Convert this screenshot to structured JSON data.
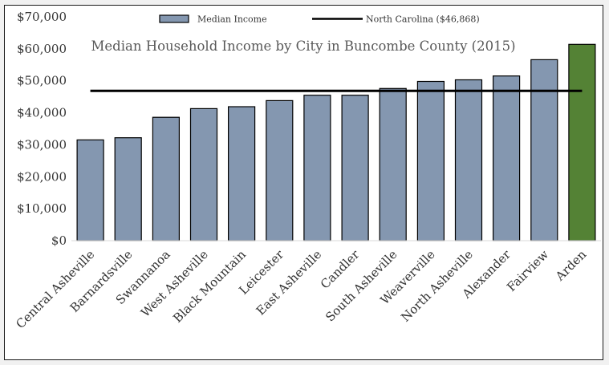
{
  "chart_data": {
    "type": "bar",
    "title": "Median Household Income by City in Buncombe County (2015)",
    "xlabel": "",
    "ylabel": "",
    "ylim": [
      0,
      70000
    ],
    "yticks": [
      0,
      10000,
      20000,
      30000,
      40000,
      50000,
      60000,
      70000
    ],
    "ytick_labels": [
      "$0",
      "$10,000",
      "$20,000",
      "$30,000",
      "$40,000",
      "$50,000",
      "$60,000",
      "$70,000"
    ],
    "grid": false,
    "legend_position": "top",
    "categories": [
      "Central Asheville",
      "Barnardsville",
      "Swannanoa",
      "West Asheville",
      "Black Mountain",
      "Leicester",
      "East Asheville",
      "Candler",
      "South Asheville",
      "Weaverville",
      "North Asheville",
      "Alexander",
      "Fairview",
      "Arden"
    ],
    "series": [
      {
        "name": "Median Income",
        "values": [
          31500,
          32200,
          38600,
          41300,
          41900,
          43800,
          45500,
          45500,
          47600,
          49800,
          50300,
          51500,
          56600,
          61400
        ],
        "color": "#8497b0",
        "highlight_color": "#548235",
        "highlight_index": 13
      }
    ],
    "reference_line": {
      "name": "North Carolina ($46,868)",
      "value": 46868,
      "color": "#000000"
    }
  }
}
